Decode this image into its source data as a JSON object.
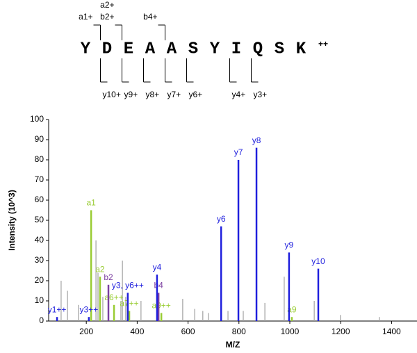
{
  "chart_data": {
    "type": "spectrum",
    "peptide": {
      "residues": [
        "Y",
        "D",
        "E",
        "A",
        "A",
        "S",
        "Y",
        "I",
        "Q",
        "S",
        "K"
      ],
      "charge": "++",
      "n_ions": [
        "a1+",
        "a2+",
        "b2+",
        "b4+"
      ],
      "c_ions": [
        "y10+",
        "y9+",
        "y8+",
        "y7+",
        "y6+",
        "y4+",
        "y3+"
      ]
    },
    "xlabel": "M/Z",
    "ylabel": "Intensity (10^3)",
    "xlim": [
      52,
      1500
    ],
    "ylim": [
      0,
      100
    ],
    "xticks": [
      200,
      400,
      600,
      800,
      1000,
      1200,
      1400
    ],
    "yticks": [
      0,
      10,
      20,
      30,
      40,
      50,
      60,
      70,
      80,
      90,
      100
    ],
    "series": [
      {
        "color": "#a0a0a0",
        "x": [
          101,
          126,
          169,
          238,
          246,
          265,
          336,
          342,
          355,
          415,
          579,
          626,
          658,
          680,
          757,
          817,
          902,
          978,
          1096,
          1199,
          1352
        ],
        "values": [
          20,
          15,
          8,
          40,
          24,
          12,
          10,
          30,
          12,
          10,
          11,
          6,
          5,
          4,
          5,
          5,
          9,
          22,
          10,
          3,
          2
        ]
      },
      {
        "color": "#99cc33",
        "x": [
          219,
          254,
          309,
          369,
          495,
          1008
        ],
        "values": [
          55,
          22,
          8,
          5,
          4,
          2
        ],
        "labels": [
          "a1",
          "a2",
          "a6++",
          "a7++",
          "a9++",
          "a9"
        ]
      },
      {
        "color": "#7b3fa0",
        "x": [
          287,
          484
        ],
        "values": [
          18,
          14
        ],
        "labels": [
          "b2",
          "b4"
        ]
      },
      {
        "color": "#1f1fdd",
        "x": [
          85,
          210,
          363,
          478,
          730,
          798,
          869,
          997,
          1112
        ],
        "values": [
          2,
          2,
          14,
          23,
          47,
          80,
          86,
          34,
          26
        ],
        "labels": [
          "y1++",
          "y3++",
          "y3, y6++",
          "y4",
          "y6",
          "y7",
          "y8",
          "y9",
          "y10"
        ]
      }
    ]
  }
}
